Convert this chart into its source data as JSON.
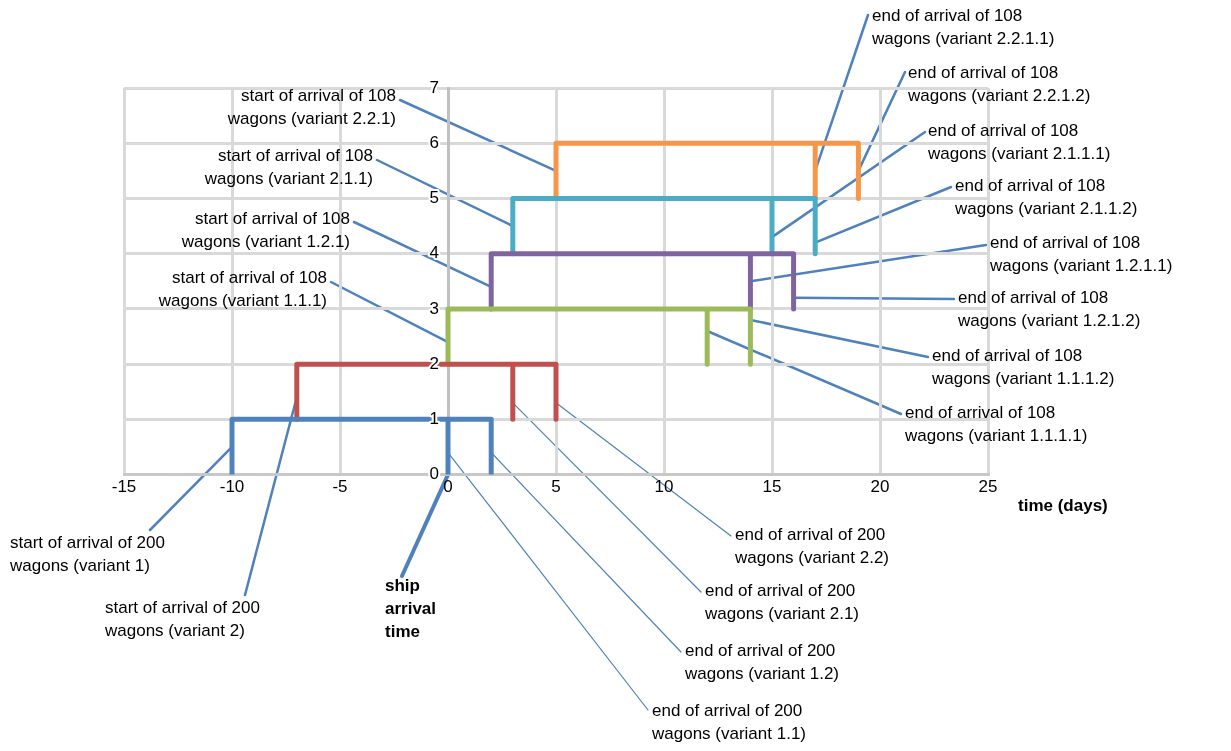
{
  "chart_data": {
    "type": "line",
    "xlabel": "time (days)",
    "xlim": [
      -15,
      25
    ],
    "xticks": [
      -15,
      -10,
      -5,
      0,
      5,
      10,
      15,
      20,
      25
    ],
    "ylim": [
      0,
      7
    ],
    "yticks": [
      0,
      1,
      2,
      3,
      4,
      5,
      6,
      7
    ],
    "grid": true,
    "legend": false,
    "marker": "none",
    "line_style": "solid",
    "series": [
      {
        "color": "#4f81bd",
        "x": [
          -10,
          -10,
          0,
          0,
          0,
          2,
          2
        ],
        "values": [
          0,
          1,
          1,
          0,
          1,
          1,
          0
        ]
      },
      {
        "color": "#c0504d",
        "x": [
          -7,
          -7,
          3,
          3,
          3,
          5,
          5
        ],
        "values": [
          1,
          2,
          2,
          1,
          2,
          2,
          1
        ]
      },
      {
        "color": "#9bbb59",
        "x": [
          0,
          0,
          12,
          12,
          12,
          14,
          14
        ],
        "values": [
          2,
          3,
          3,
          2,
          3,
          3,
          2
        ]
      },
      {
        "color": "#8064a2",
        "x": [
          2,
          2,
          14,
          14,
          14,
          16,
          16
        ],
        "values": [
          3,
          4,
          4,
          3,
          4,
          4,
          3
        ]
      },
      {
        "color": "#4bacc6",
        "x": [
          3,
          3,
          15,
          15,
          15,
          17,
          17
        ],
        "values": [
          4,
          5,
          5,
          4,
          5,
          5,
          4
        ]
      },
      {
        "color": "#f79646",
        "x": [
          5,
          5,
          17,
          17,
          17,
          19,
          19
        ],
        "values": [
          5,
          6,
          6,
          5,
          6,
          6,
          5
        ]
      }
    ],
    "annotations": [
      {
        "text": "start of arrival of 108 wagons (variant 2.2.1)",
        "x": 5,
        "y": 5.5
      },
      {
        "text": "start of arrival of 108 wagons (variant 2.1.1)",
        "x": 3,
        "y": 4.5
      },
      {
        "text": "start of arrival of 108 wagons (variant 1.2.1)",
        "x": 2,
        "y": 3.4
      },
      {
        "text": "start of arrival of 108 wagons (variant 1.1.1)",
        "x": 0,
        "y": 2.4
      },
      {
        "text": "start of arrival of 200 wagons (variant 1)",
        "x": -10,
        "y": 0.5
      },
      {
        "text": "start of arrival of 200 wagons (variant 2)",
        "x": -7,
        "y": 1.4
      },
      {
        "text": "ship arrival time",
        "x": 0,
        "y": 0
      },
      {
        "text": "end of arrival of 200 wagons (variant 1.1)",
        "x": 0,
        "y": 0.4
      },
      {
        "text": "end of arrival of 200 wagons (variant 1.2)",
        "x": 2,
        "y": 0.4
      },
      {
        "text": "end of arrival of 200 wagons (variant 2.1)",
        "x": 3,
        "y": 1.3
      },
      {
        "text": "end of arrival of 200 wagons (variant 2.2)",
        "x": 5,
        "y": 1.3
      },
      {
        "text": "end of arrival of 108 wagons (variant 2.2.1.1)",
        "x": 17,
        "y": 5.5
      },
      {
        "text": "end of arrival of 108 wagons (variant 2.2.1.2)",
        "x": 19,
        "y": 5.5
      },
      {
        "text": "end of arrival of 108 wagons (variant 2.1.1.1)",
        "x": 15,
        "y": 4.3
      },
      {
        "text": "end of arrival of 108 wagons (variant 2.1.1.2)",
        "x": 17,
        "y": 4.2
      },
      {
        "text": "end of arrival of 108 wagons (variant 1.2.1.1)",
        "x": 14,
        "y": 3.5
      },
      {
        "text": "end of arrival of 108 wagons (variant 1.2.1.2)",
        "x": 16,
        "y": 3.2
      },
      {
        "text": "end of arrival of 108 wagons (variant 1.1.1.2)",
        "x": 14,
        "y": 2.8
      },
      {
        "text": "end of arrival of 108 wagons (variant 1.1.1.1)",
        "x": 12,
        "y": 2.6
      }
    ]
  }
}
